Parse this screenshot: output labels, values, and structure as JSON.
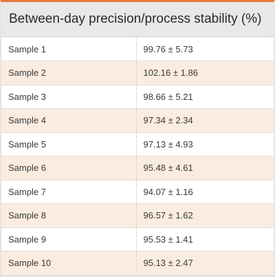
{
  "table": {
    "title": "Between-day precision/process stability (%)",
    "rows": [
      {
        "sample": "Sample 1",
        "value": "99.76 ± 5.73"
      },
      {
        "sample": "Sample 2",
        "value": "102.16 ± 1.86"
      },
      {
        "sample": "Sample 3",
        "value": "98.66 ± 5.21"
      },
      {
        "sample": "Sample 4",
        "value": "97.34 ± 2.34"
      },
      {
        "sample": "Sample 5",
        "value": "97.13 ± 4.93"
      },
      {
        "sample": "Sample 6",
        "value": "95.48 ± 4.61"
      },
      {
        "sample": "Sample 7",
        "value": "94.07 ± 1.16"
      },
      {
        "sample": "Sample 8",
        "value": "96.57 ± 1.62"
      },
      {
        "sample": "Sample 9",
        "value": "95.53 ± 1.41"
      },
      {
        "sample": "Sample 10",
        "value": "95.13 ± 2.47"
      }
    ]
  },
  "colors": {
    "accent": "#e37a3e",
    "header_bg": "#e9e8e8",
    "stripe_bg": "#fbece1"
  }
}
